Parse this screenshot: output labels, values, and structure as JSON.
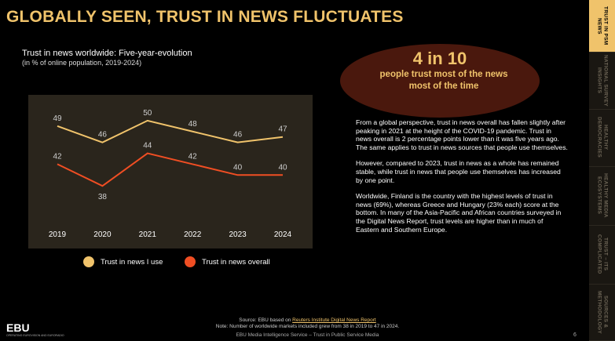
{
  "title": "GLOBALLY SEEN, TRUST IN NEWS FLUCTUATES",
  "chart_data": {
    "type": "line",
    "title": "Trust in news worldwide: Five-year-evolution",
    "subtitle": "(in % of online population, 2019-2024)",
    "categories": [
      "2019",
      "2020",
      "2021",
      "2022",
      "2023",
      "2024"
    ],
    "series": [
      {
        "name": "Trust in news I use",
        "color": "#f0c36b",
        "values": [
          49,
          46,
          50,
          48,
          46,
          47
        ]
      },
      {
        "name": "Trust in news overall",
        "color": "#f04e23",
        "values": [
          42,
          38,
          44,
          42,
          40,
          40
        ]
      }
    ],
    "ylim": [
      35,
      52
    ],
    "legend_position": "bottom",
    "grid": false
  },
  "highlight": {
    "big": "4 in 10",
    "text": "people trust most of the news most of the time"
  },
  "body": {
    "p1": "From a global perspective, trust in news overall has fallen slightly after peaking in 2021 at the height of the COVID-19 pandemic. Trust in news overall is 2 percentage points lower than it was five years ago. The same applies to trust in news sources that people use themselves.",
    "p2": "However, compared to 2023, trust in news as a whole has remained stable, while trust in news that people use themselves has increased by one point.",
    "p3": "Worldwide, Finland is the country with the highest levels of trust in news (69%), whereas Greece and Hungary (23% each) score at the bottom. In many of the Asia-Pacific and African countries surveyed in the Digital News Report, trust levels are higher than in much of Eastern and Southern Europe."
  },
  "sidebar": {
    "tabs": [
      "TRUST IN PSM NEWS",
      "NATIONAL SURVEY INSIGHTS",
      "HEALTHY DEMOCRACIES",
      "HEALTHY MEDIA ECOSYSTEMS",
      "TRUST – ITS COMPLICATED",
      "SOURCES & METHODOLOGY"
    ]
  },
  "footer": {
    "logo": "EBU",
    "logo_sub": "OPERATING EUROVISION AND EURORADIO",
    "source_prefix": "Source: EBU based on ",
    "source_link": "Reuters Institute Digital News Report",
    "note": "Note: Number of worldwide markets included grew from 38 in 2019 to 47 in 2024.",
    "service": "EBU Media Intelligence Service – Trust in Public Service Media",
    "page": "6"
  }
}
